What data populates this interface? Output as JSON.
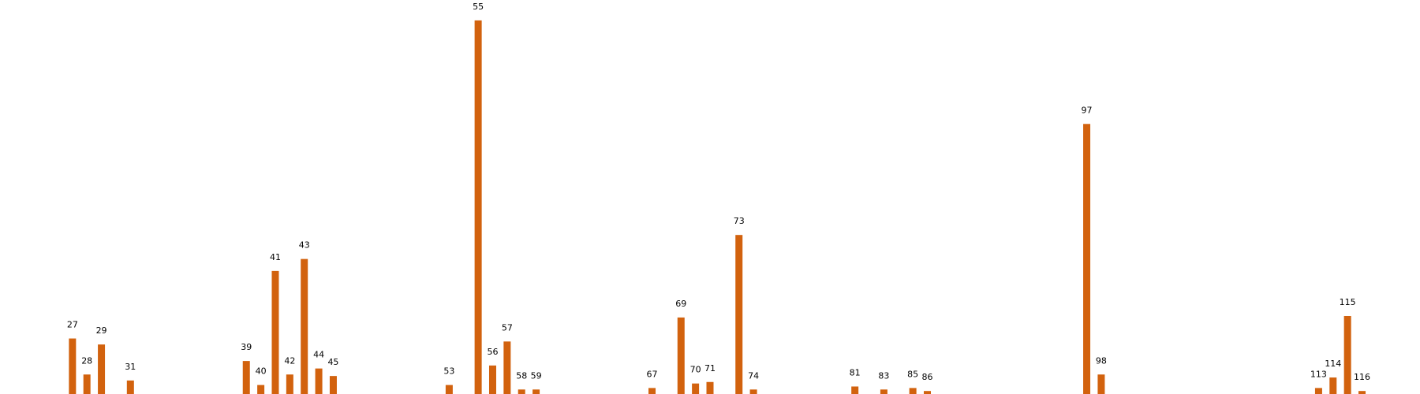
{
  "chart_data": {
    "type": "bar",
    "title": "",
    "xlabel": "",
    "ylabel": "",
    "grid": false,
    "legend": "none",
    "axes_visible": false,
    "bar_color": "#D2620E",
    "x_domain": [
      22,
      120
    ],
    "ylim": [
      0,
      250
    ],
    "bars": [
      {
        "x": 27,
        "label": "27",
        "value": 37
      },
      {
        "x": 28,
        "label": "28",
        "value": 13
      },
      {
        "x": 29,
        "label": "29",
        "value": 33
      },
      {
        "x": 31,
        "label": "31",
        "value": 9
      },
      {
        "x": 39,
        "label": "39",
        "value": 22
      },
      {
        "x": 40,
        "label": "40",
        "value": 6
      },
      {
        "x": 41,
        "label": "41",
        "value": 82
      },
      {
        "x": 42,
        "label": "42",
        "value": 13
      },
      {
        "x": 43,
        "label": "43",
        "value": 90
      },
      {
        "x": 44,
        "label": "44",
        "value": 17
      },
      {
        "x": 45,
        "label": "45",
        "value": 12
      },
      {
        "x": 53,
        "label": "53",
        "value": 6
      },
      {
        "x": 55,
        "label": "55",
        "value": 249
      },
      {
        "x": 56,
        "label": "56",
        "value": 19
      },
      {
        "x": 57,
        "label": "57",
        "value": 35
      },
      {
        "x": 58,
        "label": "58",
        "value": 3
      },
      {
        "x": 59,
        "label": "59",
        "value": 3
      },
      {
        "x": 67,
        "label": "67",
        "value": 4
      },
      {
        "x": 69,
        "label": "69",
        "value": 51
      },
      {
        "x": 70,
        "label": "70",
        "value": 7
      },
      {
        "x": 71,
        "label": "71",
        "value": 8
      },
      {
        "x": 73,
        "label": "73",
        "value": 106
      },
      {
        "x": 74,
        "label": "74",
        "value": 3
      },
      {
        "x": 81,
        "label": "81",
        "value": 5
      },
      {
        "x": 83,
        "label": "83",
        "value": 3
      },
      {
        "x": 85,
        "label": "85",
        "value": 4
      },
      {
        "x": 86,
        "label": "86",
        "value": 2
      },
      {
        "x": 97,
        "label": "97",
        "value": 180
      },
      {
        "x": 98,
        "label": "98",
        "value": 13
      },
      {
        "x": 113,
        "label": "113",
        "value": 4
      },
      {
        "x": 114,
        "label": "114",
        "value": 11
      },
      {
        "x": 115,
        "label": "115",
        "value": 52
      },
      {
        "x": 116,
        "label": "116",
        "value": 2
      }
    ]
  }
}
